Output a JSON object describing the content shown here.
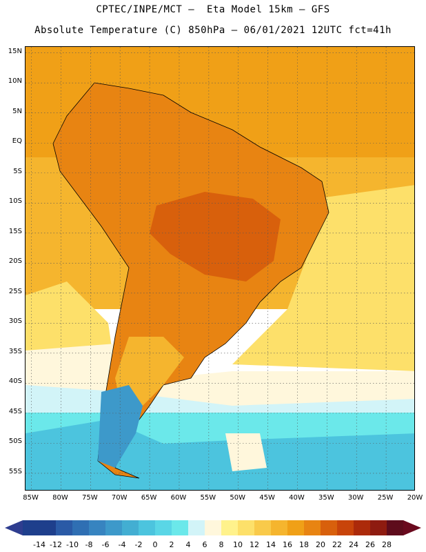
{
  "header": {
    "line1": "CPTEC/INPE/MCT –  Eta Model 15km – GFS",
    "line2": "Absolute Temperature (C) 850hPa – 06/01/2021 12UTC fct=41h"
  },
  "map": {
    "latitude_labels": [
      "15N",
      "10N",
      "5N",
      "EQ",
      "5S",
      "10S",
      "15S",
      "20S",
      "25S",
      "30S",
      "35S",
      "40S",
      "45S",
      "50S",
      "55S"
    ],
    "longitude_labels": [
      "85W",
      "80W",
      "75W",
      "70W",
      "65W",
      "60W",
      "55W",
      "50W",
      "45W",
      "40W",
      "35W",
      "30W",
      "25W",
      "20W"
    ],
    "extent": {
      "lon_min": -86,
      "lon_max": -20,
      "lat_min": -58,
      "lat_max": 16
    }
  },
  "colorbar": {
    "labels": [
      "-14",
      "-12",
      "-10",
      "-8",
      "-6",
      "-4",
      "-2",
      "0",
      "2",
      "4",
      "6",
      "8",
      "10",
      "12",
      "14",
      "16",
      "18",
      "20",
      "22",
      "24",
      "26",
      "28"
    ],
    "colors": [
      "#1e3f8c",
      "#1e3f8c",
      "#2a5aa6",
      "#2f6fb3",
      "#3784c0",
      "#3d99ca",
      "#43aed2",
      "#4cc4de",
      "#5ad6e6",
      "#6be8ea",
      "#d2f4f8",
      "#fff7dc",
      "#fff28c",
      "#fde06a",
      "#f9ca4a",
      "#f5b52e",
      "#f0a017",
      "#e88412",
      "#d8600c",
      "#c8440a",
      "#ac2a0a",
      "#8e1b10",
      "#5e0c1c"
    ],
    "left_arrow_color": "#2e3d8f",
    "right_arrow_color": "#6a0a1e"
  },
  "zones": {
    "ocean_n": "#f0a017",
    "ocean_mid": "#f5b52e",
    "ocean_sub": "#fde06a",
    "ocean_cream": "#fff7dc",
    "ocean_lightcyan": "#d2f4f8",
    "ocean_cyan": "#6be8ea",
    "ocean_deepcyan": "#4cc4de",
    "land_warm": "#e88412",
    "land_hot": "#d8600c",
    "land_south": "#f5b52e",
    "patagonia": "#3d99ca"
  }
}
